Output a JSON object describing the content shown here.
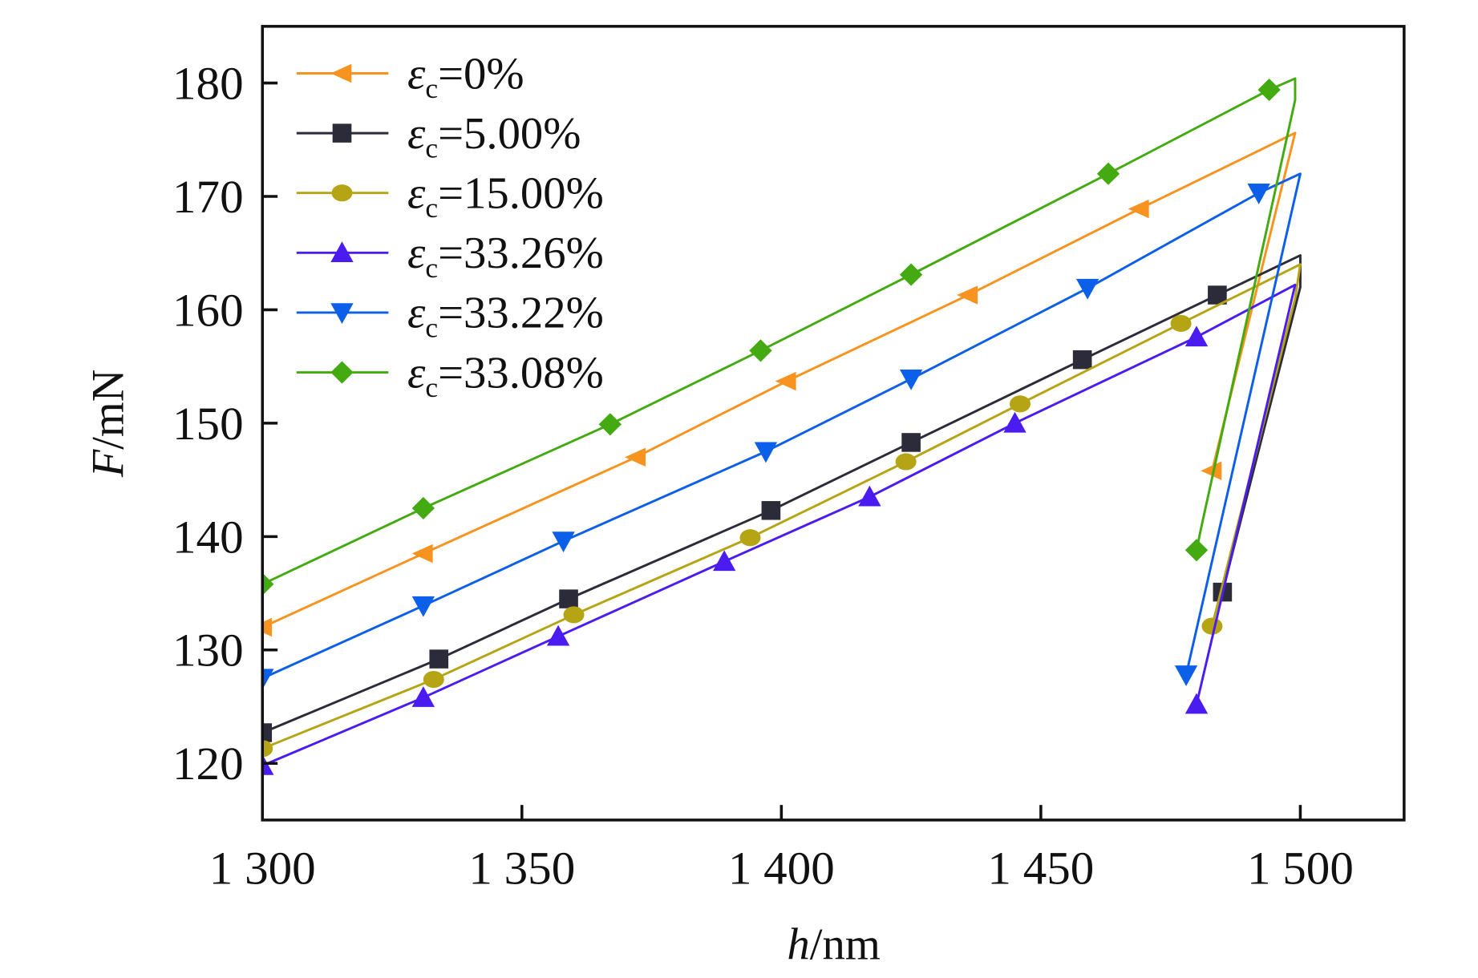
{
  "chart_data": {
    "type": "line",
    "title": "",
    "xlabel": {
      "italic": "h",
      "rest": "/nm"
    },
    "ylabel": {
      "italic": "F",
      "rest": "/mN"
    },
    "xlim": [
      1300,
      1520
    ],
    "ylim": [
      115,
      185
    ],
    "xticks": [
      1300,
      1350,
      1400,
      1450,
      1500
    ],
    "xtick_labels": [
      "1 300",
      "1 350",
      "1 400",
      "1 450",
      "1 500"
    ],
    "yticks": [
      120,
      130,
      140,
      150,
      160,
      170,
      180
    ],
    "ytick_labels": [
      "120",
      "130",
      "140",
      "150",
      "160",
      "170",
      "180"
    ],
    "grid": false,
    "legend_position": "top-left",
    "series": [
      {
        "name": "εc=0%",
        "symbol": "ε",
        "sub": "c",
        "value": "=0%",
        "color": "#f7931e",
        "marker": "triangle-left",
        "points": [
          [
            1300,
            132
          ],
          [
            1331,
            138.5
          ],
          [
            1372,
            147
          ],
          [
            1401,
            153.7
          ],
          [
            1436,
            161.3
          ],
          [
            1469,
            168.9
          ],
          [
            1499,
            175.6
          ],
          [
            1483,
            145.8
          ]
        ],
        "markers": [
          [
            1300,
            132
          ],
          [
            1331,
            138.5
          ],
          [
            1372,
            147
          ],
          [
            1401,
            153.7
          ],
          [
            1436,
            161.3
          ],
          [
            1469,
            168.9
          ],
          [
            1483,
            145.8
          ]
        ]
      },
      {
        "name": "εc=5.00%",
        "symbol": "ε",
        "sub": "c",
        "value": "=5.00%",
        "color": "#2b2b3a",
        "marker": "square",
        "points": [
          [
            1300,
            122.7
          ],
          [
            1334,
            129.2
          ],
          [
            1359,
            134.5
          ],
          [
            1398,
            142.3
          ],
          [
            1425,
            148.3
          ],
          [
            1458,
            155.6
          ],
          [
            1484,
            161.3
          ],
          [
            1500,
            164.8
          ],
          [
            1500,
            162
          ],
          [
            1485,
            135.1
          ]
        ],
        "markers": [
          [
            1300,
            122.7
          ],
          [
            1334,
            129.2
          ],
          [
            1359,
            134.5
          ],
          [
            1398,
            142.3
          ],
          [
            1425,
            148.3
          ],
          [
            1458,
            155.6
          ],
          [
            1484,
            161.3
          ],
          [
            1485,
            135.1
          ]
        ]
      },
      {
        "name": "εc=15.00%",
        "symbol": "ε",
        "sub": "c",
        "value": "=15.00%",
        "color": "#b5a414",
        "marker": "circle",
        "points": [
          [
            1300,
            121.3
          ],
          [
            1333,
            127.4
          ],
          [
            1360,
            133.1
          ],
          [
            1394,
            139.9
          ],
          [
            1424,
            146.6
          ],
          [
            1446,
            151.7
          ],
          [
            1477,
            158.8
          ],
          [
            1500,
            164
          ],
          [
            1499,
            161
          ],
          [
            1483,
            132.1
          ]
        ],
        "markers": [
          [
            1300,
            121.3
          ],
          [
            1333,
            127.4
          ],
          [
            1360,
            133.1
          ],
          [
            1394,
            139.9
          ],
          [
            1424,
            146.6
          ],
          [
            1446,
            151.7
          ],
          [
            1477,
            158.8
          ],
          [
            1483,
            132.1
          ]
        ]
      },
      {
        "name": "εc=33.26%",
        "symbol": "ε",
        "sub": "c",
        "value": "=33.26%",
        "color": "#4b1cf0",
        "marker": "triangle-up",
        "points": [
          [
            1300,
            119.8
          ],
          [
            1331,
            125.8
          ],
          [
            1357,
            131.2
          ],
          [
            1389,
            137.8
          ],
          [
            1417,
            143.5
          ],
          [
            1445,
            150
          ],
          [
            1480,
            157.6
          ],
          [
            1499,
            162.2
          ],
          [
            1480,
            125.2
          ]
        ],
        "markers": [
          [
            1300,
            119.8
          ],
          [
            1331,
            125.8
          ],
          [
            1357,
            131.2
          ],
          [
            1389,
            137.8
          ],
          [
            1417,
            143.5
          ],
          [
            1445,
            150
          ],
          [
            1480,
            157.6
          ],
          [
            1480,
            125.2
          ]
        ]
      },
      {
        "name": "εc=33.22%",
        "symbol": "ε",
        "sub": "c",
        "value": "=33.22%",
        "color": "#0b5fe8",
        "marker": "triangle-down",
        "points": [
          [
            1300,
            127.5
          ],
          [
            1331,
            133.9
          ],
          [
            1358,
            139.6
          ],
          [
            1397,
            147.5
          ],
          [
            1425,
            153.9
          ],
          [
            1459,
            161.9
          ],
          [
            1492,
            170.3
          ],
          [
            1500,
            172
          ],
          [
            1478,
            127.8
          ]
        ],
        "markers": [
          [
            1300,
            127.5
          ],
          [
            1331,
            133.9
          ],
          [
            1358,
            139.6
          ],
          [
            1397,
            147.5
          ],
          [
            1425,
            153.9
          ],
          [
            1459,
            161.9
          ],
          [
            1492,
            170.3
          ],
          [
            1478,
            127.8
          ]
        ]
      },
      {
        "name": "εc=33.08%",
        "symbol": "ε",
        "sub": "c",
        "value": "=33.08%",
        "color": "#44aa11",
        "marker": "diamond",
        "points": [
          [
            1300,
            135.8
          ],
          [
            1331,
            142.5
          ],
          [
            1367,
            149.9
          ],
          [
            1396,
            156.4
          ],
          [
            1425,
            163.1
          ],
          [
            1463,
            172
          ],
          [
            1494,
            179.4
          ],
          [
            1499,
            180.4
          ],
          [
            1499,
            178.5
          ],
          [
            1481,
            141
          ],
          [
            1480,
            138.8
          ]
        ],
        "markers": [
          [
            1300,
            135.8
          ],
          [
            1331,
            142.5
          ],
          [
            1367,
            149.9
          ],
          [
            1396,
            156.4
          ],
          [
            1425,
            163.1
          ],
          [
            1463,
            172
          ],
          [
            1494,
            179.4
          ],
          [
            1480,
            138.8
          ]
        ]
      }
    ]
  }
}
